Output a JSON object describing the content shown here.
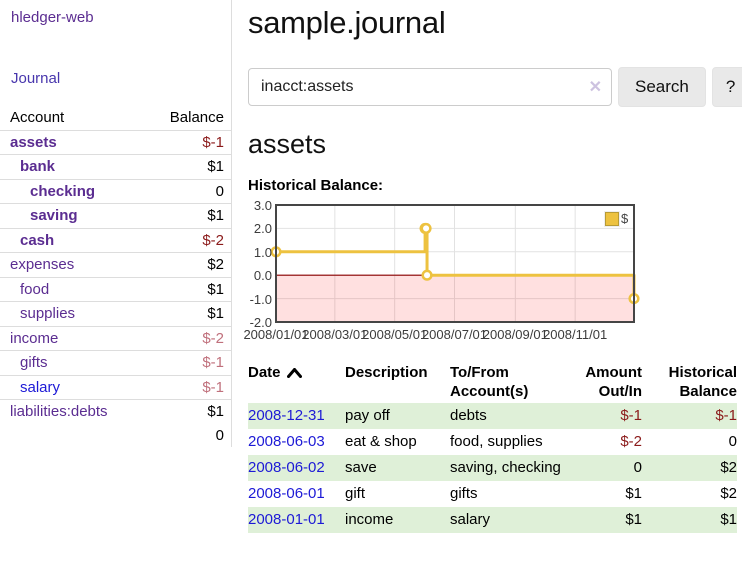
{
  "colors": {
    "purple": "#5b2d91",
    "journal-blue": "#4836ad",
    "blue-link": "#1d1ad6",
    "neg": "#8b1a1a",
    "neg-muted": "#c0707c",
    "row-green": "#dff0d8",
    "button-bg": "#e9e9e9",
    "chart-gold": "#edc240",
    "chart-negative-fill": "rgba(255,0,0,0.12)",
    "chart-zero-line": "#8b0000",
    "chart-border": "#454545",
    "chart-grid": "#e2e2e2"
  },
  "sidebar": {
    "brand": "hledger-web",
    "nav": [
      {
        "label": "Journal"
      }
    ],
    "accounts_table": {
      "headers": {
        "account": "Account",
        "balance": "Balance"
      },
      "rows": [
        {
          "name": "assets",
          "indent": 0,
          "bold": true,
          "balance": "$-1",
          "balance_style": "neg"
        },
        {
          "name": "bank",
          "indent": 1,
          "bold": true,
          "balance": "$1",
          "balance_style": "pos"
        },
        {
          "name": "checking",
          "indent": 2,
          "bold": true,
          "balance": "0",
          "balance_style": "pos"
        },
        {
          "name": "saving",
          "indent": 2,
          "bold": true,
          "balance": "$1",
          "balance_style": "pos"
        },
        {
          "name": "cash",
          "indent": 1,
          "bold": true,
          "balance": "$-2",
          "balance_style": "neg"
        },
        {
          "name": "expenses",
          "indent": 0,
          "bold": false,
          "balance": "$2",
          "balance_style": "pos"
        },
        {
          "name": "food",
          "indent": 1,
          "bold": false,
          "balance": "$1",
          "balance_style": "pos"
        },
        {
          "name": "supplies",
          "indent": 1,
          "bold": false,
          "balance": "$1",
          "balance_style": "pos"
        },
        {
          "name": "income",
          "indent": 0,
          "bold": false,
          "balance": "$-2",
          "balance_style": "neg-muted"
        },
        {
          "name": "gifts",
          "indent": 1,
          "bold": false,
          "balance": "$-1",
          "balance_style": "neg-muted"
        },
        {
          "name": "salary",
          "indent": 1,
          "bold": false,
          "link_color": "blue",
          "balance": "$-1",
          "balance_style": "neg-muted"
        },
        {
          "name": "liabilities:debts",
          "indent": 0,
          "bold": false,
          "balance": "$1",
          "balance_style": "pos"
        }
      ],
      "total": "0"
    }
  },
  "header": {
    "title": "sample.journal"
  },
  "search": {
    "value": "inacct:assets",
    "clear_icon": "✕",
    "button_label": "Search",
    "help_label": "?"
  },
  "account_page": {
    "heading": "assets",
    "chart_label": "Historical Balance:"
  },
  "chart_data": {
    "type": "line",
    "style": "steps",
    "title": "Historical Balance",
    "x_range": [
      "2008-01-01",
      "2008-12-31"
    ],
    "ylim": [
      -2,
      3
    ],
    "x_ticks": [
      "2008/01/01",
      "2008/03/01",
      "2008/05/01",
      "2008/07/01",
      "2008/09/01",
      "2008/11/01"
    ],
    "y_ticks": [
      "3.0",
      "2.0",
      "1.0",
      "0.0",
      "-1.0",
      "-2.0"
    ],
    "grid": true,
    "negative_region_shaded": true,
    "legend": {
      "label": "$",
      "position": "top-right"
    },
    "series": [
      {
        "name": "$",
        "color": "#edc240",
        "points": [
          {
            "x": "2008-01-01",
            "y": 1
          },
          {
            "x": "2008-06-01",
            "y": 2
          },
          {
            "x": "2008-06-02",
            "y": 2
          },
          {
            "x": "2008-06-03",
            "y": 0
          },
          {
            "x": "2008-12-31",
            "y": -1
          }
        ]
      }
    ]
  },
  "register_table": {
    "headers": [
      {
        "lines": [
          "Date"
        ],
        "align": "left",
        "sorted": "asc"
      },
      {
        "lines": [
          "Description"
        ],
        "align": "left"
      },
      {
        "lines": [
          "To/From",
          "Account(s)"
        ],
        "align": "left"
      },
      {
        "lines": [
          "Amount",
          "Out/In"
        ],
        "align": "right"
      },
      {
        "lines": [
          "Historical",
          "Balance"
        ],
        "align": "right"
      }
    ],
    "rows": [
      {
        "date": "2008-12-31",
        "description": "pay off",
        "accounts": "debts",
        "amount": "$-1",
        "amount_neg": true,
        "balance": "$-1",
        "balance_neg": true
      },
      {
        "date": "2008-06-03",
        "description": "eat & shop",
        "accounts": "food, supplies",
        "amount": "$-2",
        "amount_neg": true,
        "balance": "0",
        "balance_neg": false
      },
      {
        "date": "2008-06-02",
        "description": "save",
        "accounts": "saving, checking",
        "amount": "0",
        "amount_neg": false,
        "balance": "$2",
        "balance_neg": false
      },
      {
        "date": "2008-06-01",
        "description": "gift",
        "accounts": "gifts",
        "amount": "$1",
        "amount_neg": false,
        "balance": "$2",
        "balance_neg": false
      },
      {
        "date": "2008-01-01",
        "description": "income",
        "accounts": "salary",
        "amount": "$1",
        "amount_neg": false,
        "balance": "$1",
        "balance_neg": false
      }
    ]
  }
}
